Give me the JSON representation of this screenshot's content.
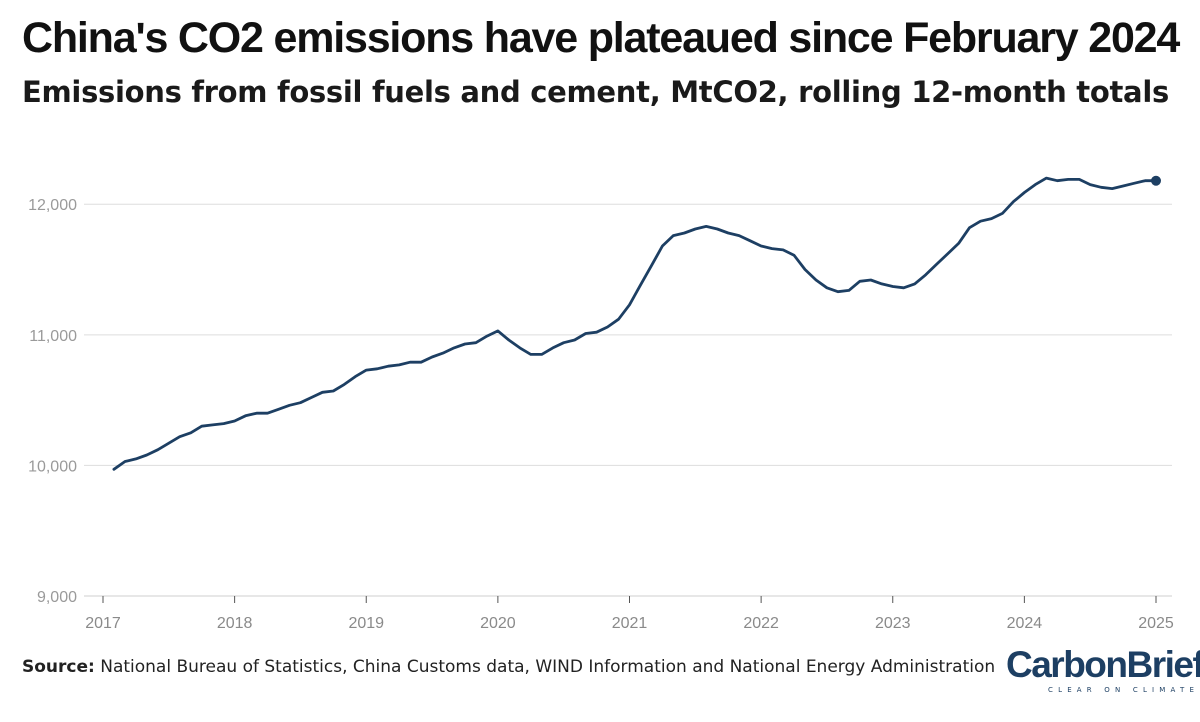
{
  "chart_data": {
    "type": "line",
    "title": "China's CO2 emissions have plateaued since February 2024",
    "subtitle": "Emissions from fossil fuels and cement, MtCO2, rolling 12-month totals",
    "xlabel": "",
    "ylabel": "",
    "xlim": [
      2017,
      2025
    ],
    "ylim": [
      9000,
      12400
    ],
    "yticks": [
      9000,
      10000,
      11000,
      12000
    ],
    "ytick_labels": [
      "9,000",
      "10,000",
      "11,000",
      "12,000"
    ],
    "xticks": [
      2017,
      2018,
      2019,
      2020,
      2021,
      2022,
      2023,
      2024,
      2025
    ],
    "xtick_labels": [
      "2017",
      "2018",
      "2019",
      "2020",
      "2021",
      "2022",
      "2023",
      "2024",
      "2025"
    ],
    "grid": true,
    "line_color": "#1d3f63",
    "grid_color": "#dddddd",
    "end_marker": true,
    "series": [
      {
        "name": "China CO2 emissions (rolling 12-month)",
        "x": [
          2017.083,
          2017.167,
          2017.25,
          2017.333,
          2017.417,
          2017.5,
          2017.583,
          2017.667,
          2017.75,
          2017.833,
          2017.917,
          2018.0,
          2018.083,
          2018.167,
          2018.25,
          2018.333,
          2018.417,
          2018.5,
          2018.583,
          2018.667,
          2018.75,
          2018.833,
          2018.917,
          2019.0,
          2019.083,
          2019.167,
          2019.25,
          2019.333,
          2019.417,
          2019.5,
          2019.583,
          2019.667,
          2019.75,
          2019.833,
          2019.917,
          2020.0,
          2020.083,
          2020.167,
          2020.25,
          2020.333,
          2020.417,
          2020.5,
          2020.583,
          2020.667,
          2020.75,
          2020.833,
          2020.917,
          2021.0,
          2021.083,
          2021.167,
          2021.25,
          2021.333,
          2021.417,
          2021.5,
          2021.583,
          2021.667,
          2021.75,
          2021.833,
          2021.917,
          2022.0,
          2022.083,
          2022.167,
          2022.25,
          2022.333,
          2022.417,
          2022.5,
          2022.583,
          2022.667,
          2022.75,
          2022.833,
          2022.917,
          2023.0,
          2023.083,
          2023.167,
          2023.25,
          2023.333,
          2023.417,
          2023.5,
          2023.583,
          2023.667,
          2023.75,
          2023.833,
          2023.917,
          2024.0,
          2024.083,
          2024.167,
          2024.25,
          2024.333,
          2024.417,
          2024.5,
          2024.583,
          2024.667,
          2024.75,
          2024.833,
          2024.917,
          2025.0
        ],
        "values": [
          9970,
          10030,
          10050,
          10080,
          10120,
          10170,
          10220,
          10250,
          10300,
          10310,
          10320,
          10340,
          10380,
          10400,
          10400,
          10430,
          10460,
          10480,
          10520,
          10560,
          10570,
          10620,
          10680,
          10730,
          10740,
          10760,
          10770,
          10790,
          10790,
          10830,
          10860,
          10900,
          10930,
          10940,
          10990,
          11030,
          10960,
          10900,
          10850,
          10850,
          10900,
          10940,
          10960,
          11010,
          11020,
          11060,
          11120,
          11230,
          11380,
          11530,
          11680,
          11760,
          11780,
          11810,
          11830,
          11810,
          11780,
          11760,
          11720,
          11680,
          11660,
          11650,
          11610,
          11500,
          11420,
          11360,
          11330,
          11340,
          11410,
          11420,
          11390,
          11370,
          11360,
          11390,
          11460,
          11540,
          11620,
          11700,
          11820,
          11870,
          11890,
          11930,
          12020,
          12090,
          12150,
          12200,
          12180,
          12190,
          12190,
          12150,
          12130,
          12120,
          12140,
          12160,
          12180,
          12180
        ]
      }
    ]
  },
  "source": {
    "label": "Source:",
    "text": "National Bureau of Statistics, China Customs data, WIND Information and National Energy Administration"
  },
  "logo": {
    "name": "CarbonBrief",
    "tagline": "CLEAR ON CLIMATE"
  }
}
